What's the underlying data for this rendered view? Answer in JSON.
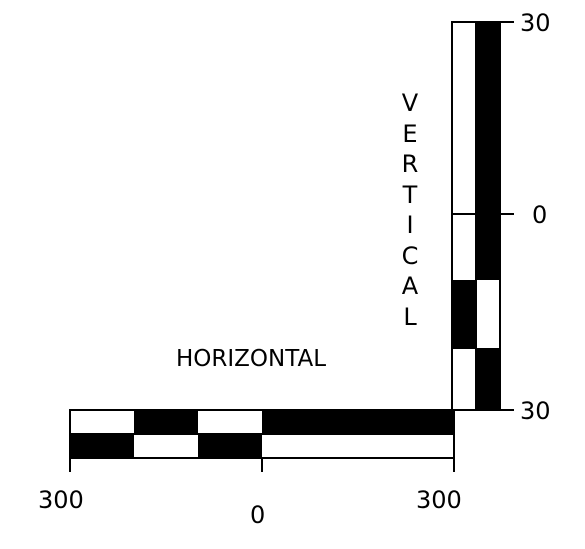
{
  "scale_bars": {
    "vertical": {
      "label": "VERTICAL",
      "tick_top": "30",
      "tick_mid": "0",
      "tick_bottom": "30"
    },
    "horizontal": {
      "label": "HORIZONTAL",
      "tick_left": "300",
      "tick_mid": "0",
      "tick_right": "300"
    }
  },
  "colors": {
    "fill": "#000000",
    "background": "#ffffff"
  }
}
